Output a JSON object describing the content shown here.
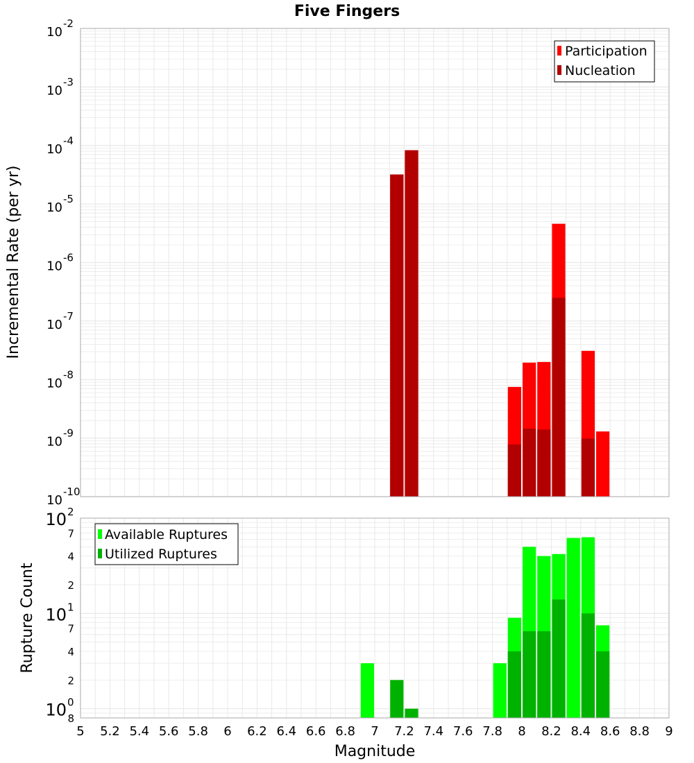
{
  "title": "Five Fingers",
  "colors": {
    "participation": "#ff0000",
    "nucleation": "#b20000",
    "available": "#00ff00",
    "utilized": "#00b200",
    "grid": "#e8e8e8",
    "plot_border": "#aaaaaa"
  },
  "chart_data": [
    {
      "type": "bar",
      "title": "Five Fingers",
      "xlabel": "Magnitude",
      "ylabel": "Incremental Rate (per yr)",
      "xlim": [
        5,
        9
      ],
      "ylim": [
        1e-10,
        0.01
      ],
      "yscale": "log",
      "bar_width": 0.1,
      "grid": true,
      "legend_position": "top-right",
      "y_ticks": [
        {
          "base": "10",
          "exp": "-10",
          "value": 1e-10
        },
        {
          "base": "10",
          "exp": "-9",
          "value": 1e-09
        },
        {
          "base": "10",
          "exp": "-8",
          "value": 1e-08
        },
        {
          "base": "10",
          "exp": "-7",
          "value": 1e-07
        },
        {
          "base": "10",
          "exp": "-6",
          "value": 1e-06
        },
        {
          "base": "10",
          "exp": "-5",
          "value": 1e-05
        },
        {
          "base": "10",
          "exp": "-4",
          "value": 0.0001
        },
        {
          "base": "10",
          "exp": "-3",
          "value": 0.001
        },
        {
          "base": "10",
          "exp": "-2",
          "value": 0.01
        }
      ],
      "series": [
        {
          "name": "Participation",
          "x": [
            7.15,
            7.25,
            7.95,
            8.05,
            8.15,
            8.25,
            8.45,
            8.55
          ],
          "values": [
            3.2e-05,
            8.3e-05,
            7.5e-09,
            1.95e-08,
            2e-08,
            4.6e-06,
            3.1e-08,
            1.3e-09
          ]
        },
        {
          "name": "Nucleation",
          "x": [
            7.15,
            7.25,
            7.95,
            8.05,
            8.15,
            8.25,
            8.45
          ],
          "values": [
            3.2e-05,
            8.3e-05,
            7.8e-10,
            1.45e-09,
            1.4e-09,
            2.5e-07,
            9.8e-10
          ]
        }
      ]
    },
    {
      "type": "bar",
      "xlabel": "Magnitude",
      "ylabel": "Rupture Count",
      "xlim": [
        5,
        9
      ],
      "ylim": [
        0.8,
        100
      ],
      "yscale": "log",
      "bar_width": 0.1,
      "grid": true,
      "legend_position": "top-left",
      "x_ticks": [
        "5",
        "5.2",
        "5.4",
        "5.6",
        "5.8",
        "6",
        "6.2",
        "6.4",
        "6.6",
        "6.8",
        "7",
        "7.2",
        "7.4",
        "7.6",
        "7.8",
        "8",
        "8.2",
        "8.4",
        "8.6",
        "8.8",
        "9"
      ],
      "y_major_ticks": [
        {
          "base": "10",
          "exp": "0",
          "value": 1
        },
        {
          "base": "10",
          "exp": "1",
          "value": 10
        },
        {
          "base": "10",
          "exp": "2",
          "value": 100
        }
      ],
      "y_minor_ticks": [
        {
          "label": "8",
          "value": 0.8
        },
        {
          "label": "2",
          "value": 2
        },
        {
          "label": "4",
          "value": 4
        },
        {
          "label": "7",
          "value": 7
        },
        {
          "label": "2",
          "value": 20
        },
        {
          "label": "4",
          "value": 40
        },
        {
          "label": "7",
          "value": 70
        }
      ],
      "series": [
        {
          "name": "Available Ruptures",
          "x": [
            6.95,
            7.85,
            7.95,
            8.05,
            8.15,
            8.25,
            8.35,
            8.45,
            8.55
          ],
          "values": [
            3,
            3,
            9,
            50,
            40,
            42,
            62,
            63,
            7.5
          ]
        },
        {
          "name": "Utilized Ruptures",
          "x": [
            7.15,
            7.25,
            7.95,
            8.05,
            8.15,
            8.25,
            8.45,
            8.55
          ],
          "values": [
            2,
            1,
            4,
            6.5,
            6.5,
            14,
            10,
            4
          ]
        }
      ]
    }
  ]
}
